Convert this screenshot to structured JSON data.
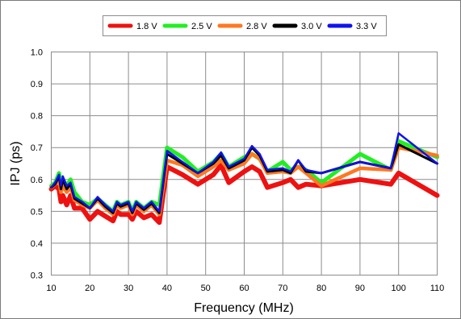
{
  "chart_data": {
    "type": "line",
    "title": "",
    "xlabel": "Frequency (MHz)",
    "ylabel": "IPJ (ps)",
    "xlim": [
      10,
      110
    ],
    "ylim": [
      0.3,
      1.0
    ],
    "x_ticks": [
      10,
      20,
      30,
      40,
      50,
      60,
      70,
      80,
      90,
      100,
      110
    ],
    "y_ticks": [
      0.3,
      0.4,
      0.5,
      0.6,
      0.7,
      0.8,
      0.9,
      1.0
    ],
    "x_tick_labels": [
      "10",
      "20",
      "30",
      "40",
      "50",
      "60",
      "70",
      "80",
      "90",
      "100",
      "110"
    ],
    "y_tick_labels": [
      "0.3",
      "0.4",
      "0.5",
      "0.6",
      "0.7",
      "0.8",
      "0.9",
      "1.0"
    ],
    "grid": true,
    "legend_position": "top-center",
    "x": [
      10,
      11,
      12,
      12.5,
      13,
      14,
      15,
      16,
      18,
      20,
      22,
      24,
      26,
      27,
      28,
      30,
      31,
      32,
      33,
      34,
      36,
      38,
      40,
      44,
      48,
      52,
      54,
      56,
      60,
      62,
      64,
      66,
      70,
      72,
      74,
      76,
      80,
      90,
      98,
      100,
      110
    ],
    "series": [
      {
        "name": "1.8 V",
        "color": "#ee1111",
        "values": [
          0.57,
          0.58,
          0.57,
          0.53,
          0.55,
          0.52,
          0.55,
          0.51,
          0.51,
          0.475,
          0.5,
          0.485,
          0.47,
          0.5,
          0.49,
          0.49,
          0.475,
          0.5,
          0.49,
          0.48,
          0.49,
          0.465,
          0.64,
          0.615,
          0.585,
          0.615,
          0.645,
          0.59,
          0.625,
          0.64,
          0.625,
          0.575,
          0.59,
          0.6,
          0.575,
          0.585,
          0.58,
          0.6,
          0.585,
          0.62,
          0.55
        ]
      },
      {
        "name": "2.5 V",
        "color": "#22ee22",
        "values": [
          0.58,
          0.59,
          0.62,
          0.59,
          0.6,
          0.58,
          0.6,
          0.56,
          0.53,
          0.52,
          0.54,
          0.52,
          0.5,
          0.53,
          0.52,
          0.53,
          0.5,
          0.53,
          0.52,
          0.51,
          0.53,
          0.52,
          0.7,
          0.67,
          0.625,
          0.655,
          0.68,
          0.64,
          0.67,
          0.68,
          0.665,
          0.625,
          0.655,
          0.63,
          0.64,
          0.63,
          0.59,
          0.68,
          0.63,
          0.72,
          0.67
        ]
      },
      {
        "name": "2.8 V",
        "color": "#ff7722",
        "values": [
          0.575,
          0.585,
          0.6,
          0.56,
          0.58,
          0.56,
          0.575,
          0.535,
          0.52,
          0.51,
          0.535,
          0.51,
          0.49,
          0.52,
          0.51,
          0.52,
          0.49,
          0.52,
          0.51,
          0.5,
          0.52,
          0.49,
          0.66,
          0.645,
          0.61,
          0.64,
          0.66,
          0.63,
          0.65,
          0.68,
          0.665,
          0.62,
          0.625,
          0.62,
          0.64,
          0.62,
          0.58,
          0.635,
          0.63,
          0.7,
          0.675
        ]
      },
      {
        "name": "3.0 V",
        "color": "#000000",
        "values": [
          0.575,
          0.585,
          0.61,
          0.57,
          0.6,
          0.57,
          0.585,
          0.54,
          0.525,
          0.51,
          0.54,
          0.515,
          0.495,
          0.525,
          0.515,
          0.525,
          0.495,
          0.525,
          0.515,
          0.505,
          0.525,
          0.495,
          0.68,
          0.65,
          0.62,
          0.65,
          0.675,
          0.635,
          0.66,
          0.7,
          0.675,
          0.625,
          0.63,
          0.62,
          0.66,
          0.625,
          0.62,
          0.655,
          0.635,
          0.71,
          0.65
        ]
      },
      {
        "name": "3.3 V",
        "color": "#1111ee",
        "values": [
          0.575,
          0.59,
          0.615,
          0.58,
          0.61,
          0.58,
          0.59,
          0.545,
          0.53,
          0.51,
          0.545,
          0.52,
          0.5,
          0.53,
          0.52,
          0.53,
          0.5,
          0.53,
          0.52,
          0.51,
          0.53,
          0.5,
          0.69,
          0.655,
          0.62,
          0.655,
          0.685,
          0.64,
          0.665,
          0.705,
          0.68,
          0.63,
          0.635,
          0.625,
          0.66,
          0.63,
          0.62,
          0.655,
          0.635,
          0.745,
          0.65
        ]
      }
    ]
  }
}
